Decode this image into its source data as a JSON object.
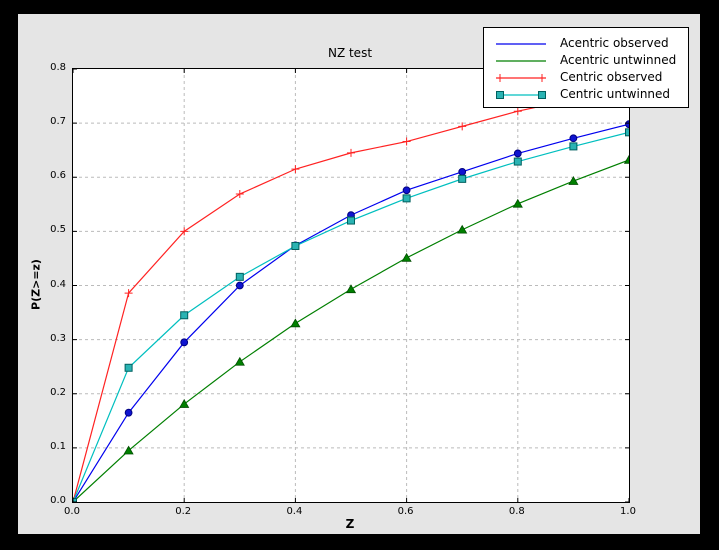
{
  "canvas": {
    "background": "#000000",
    "figure_background": "#e5e5e5",
    "plot_background": "#ffffff",
    "grid_color": "#bbbbbb",
    "spine_color": "#000000"
  },
  "chart_data": {
    "type": "line",
    "title": "NZ test",
    "xlabel": "Z",
    "ylabel": "P(Z>=z)",
    "xlim": [
      0.0,
      1.0
    ],
    "ylim": [
      0.0,
      0.8
    ],
    "grid": true,
    "grid_x_every": 0.2,
    "grid_y_every": 0.1,
    "legend_position": "upper-right-overlapping",
    "x_ticks": [
      0.0,
      0.2,
      0.4,
      0.6,
      0.8,
      1.0
    ],
    "x_tick_labels": [
      "0.0",
      "0.2",
      "0.4",
      "0.6",
      "0.8",
      "1.0"
    ],
    "y_ticks": [
      0.0,
      0.1,
      0.2,
      0.3,
      0.4,
      0.5,
      0.6,
      0.7,
      0.8
    ],
    "y_tick_labels": [
      "0.0",
      "0.1",
      "0.2",
      "0.3",
      "0.4",
      "0.5",
      "0.6",
      "0.7",
      "0.8"
    ],
    "x": [
      0.0,
      0.1,
      0.2,
      0.3,
      0.4,
      0.5,
      0.6,
      0.7,
      0.8,
      0.9,
      1.0
    ],
    "series": [
      {
        "name": "Acentric observed",
        "color": "#0000ee",
        "marker": "circle",
        "marker_fill": "#0f14d0",
        "marker_edge": "#000080",
        "values": [
          0.0,
          0.165,
          0.295,
          0.4,
          0.474,
          0.53,
          0.576,
          0.61,
          0.644,
          0.672,
          0.698
        ]
      },
      {
        "name": "Acentric untwinned",
        "color": "#007f00",
        "marker": "triangle",
        "marker_fill": "#008000",
        "marker_edge": "#004d00",
        "values": [
          0.0,
          0.095,
          0.181,
          0.259,
          0.33,
          0.393,
          0.451,
          0.503,
          0.551,
          0.593,
          0.632
        ]
      },
      {
        "name": "Centric observed",
        "color": "#ff2222",
        "marker": "plus",
        "marker_fill": "#ff2222",
        "marker_edge": "#ff2222",
        "values": [
          0.0,
          0.386,
          0.5,
          0.569,
          0.615,
          0.645,
          0.666,
          0.694,
          0.722,
          0.744,
          0.763
        ]
      },
      {
        "name": "Centric untwinned",
        "color": "#00bfbf",
        "marker": "square",
        "marker_fill": "#2ab3b3",
        "marker_edge": "#00605f",
        "values": [
          0.0,
          0.248,
          0.345,
          0.416,
          0.473,
          0.52,
          0.561,
          0.597,
          0.629,
          0.657,
          0.683
        ]
      }
    ]
  }
}
